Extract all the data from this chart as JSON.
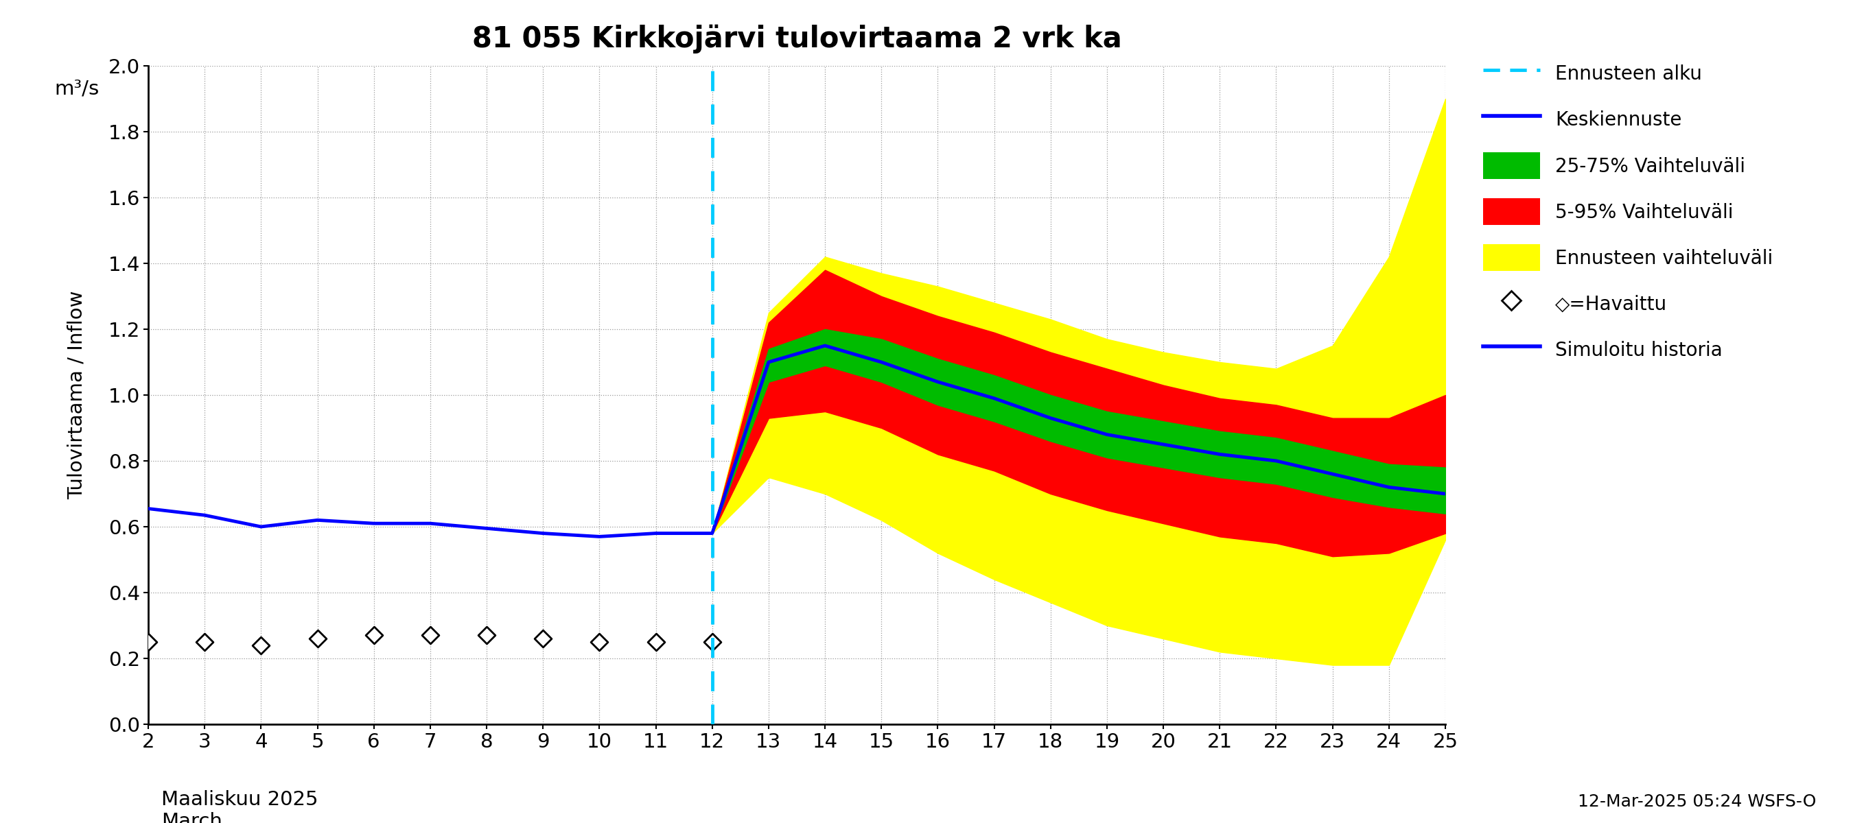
{
  "title": "81 055 Kirkkojärvi tulovirtaama 2 vrk ka",
  "ylabel_rotated": "Tulovirtaama / Inflow",
  "ylabel_top": "m³/s",
  "xlabel_line1": "Maaliskuu 2025",
  "xlabel_line2": "March",
  "footer": "12-Mar-2025 05:24 WSFS-O",
  "ylim": [
    0.0,
    2.0
  ],
  "yticks": [
    0.0,
    0.2,
    0.4,
    0.6,
    0.8,
    1.0,
    1.2,
    1.4,
    1.6,
    1.8,
    2.0
  ],
  "xticks": [
    2,
    3,
    4,
    5,
    6,
    7,
    8,
    9,
    10,
    11,
    12,
    13,
    14,
    15,
    16,
    17,
    18,
    19,
    20,
    21,
    22,
    23,
    24,
    25
  ],
  "forecast_start_day": 12,
  "colors": {
    "cyan_line": "#00CCFF",
    "blue_line": "#0000FF",
    "green_fill": "#00BB00",
    "red_fill": "#FF0000",
    "yellow_fill": "#FFFF00",
    "diamond": "#000000",
    "background": "#FFFFFF"
  },
  "hist_days": [
    2,
    3,
    4,
    5,
    6,
    7,
    8,
    9,
    10,
    11,
    12
  ],
  "hist_flow": [
    0.655,
    0.635,
    0.6,
    0.62,
    0.61,
    0.61,
    0.595,
    0.58,
    0.57,
    0.58,
    0.58
  ],
  "forecast_days": [
    12,
    13,
    14,
    15,
    16,
    17,
    18,
    19,
    20,
    21,
    22,
    23,
    24,
    25
  ],
  "forecast_median": [
    0.58,
    1.1,
    1.15,
    1.1,
    1.04,
    0.99,
    0.93,
    0.88,
    0.85,
    0.82,
    0.8,
    0.76,
    0.72,
    0.7
  ],
  "p25": [
    0.58,
    1.04,
    1.09,
    1.04,
    0.97,
    0.92,
    0.86,
    0.81,
    0.78,
    0.75,
    0.73,
    0.69,
    0.66,
    0.64
  ],
  "p75": [
    0.58,
    1.14,
    1.2,
    1.17,
    1.11,
    1.06,
    1.0,
    0.95,
    0.92,
    0.89,
    0.87,
    0.83,
    0.79,
    0.78
  ],
  "p05": [
    0.58,
    0.93,
    0.95,
    0.9,
    0.82,
    0.77,
    0.7,
    0.65,
    0.61,
    0.57,
    0.55,
    0.51,
    0.52,
    0.58
  ],
  "p95": [
    0.58,
    1.22,
    1.38,
    1.3,
    1.24,
    1.19,
    1.13,
    1.08,
    1.03,
    0.99,
    0.97,
    0.93,
    0.93,
    1.0
  ],
  "yellow_min": [
    0.58,
    0.75,
    0.7,
    0.62,
    0.52,
    0.44,
    0.37,
    0.3,
    0.26,
    0.22,
    0.2,
    0.18,
    0.18,
    0.56
  ],
  "yellow_max": [
    0.58,
    1.25,
    1.42,
    1.37,
    1.33,
    1.28,
    1.23,
    1.17,
    1.13,
    1.1,
    1.08,
    1.15,
    1.42,
    1.9
  ],
  "observed_days": [
    2,
    3,
    4,
    5,
    6,
    7,
    8,
    9,
    10,
    11,
    12
  ],
  "observed_vals": [
    0.25,
    0.25,
    0.24,
    0.26,
    0.27,
    0.27,
    0.27,
    0.26,
    0.25,
    0.25,
    0.25
  ],
  "legend_labels": [
    "Ennusteen alku",
    "Keskiennuste",
    "25-75% Vaihteluväli",
    "5-95% Vaihteluväli",
    "Ennusteen vaihteluväli",
    "◇=Havaittu",
    "Simuloitu historia"
  ]
}
